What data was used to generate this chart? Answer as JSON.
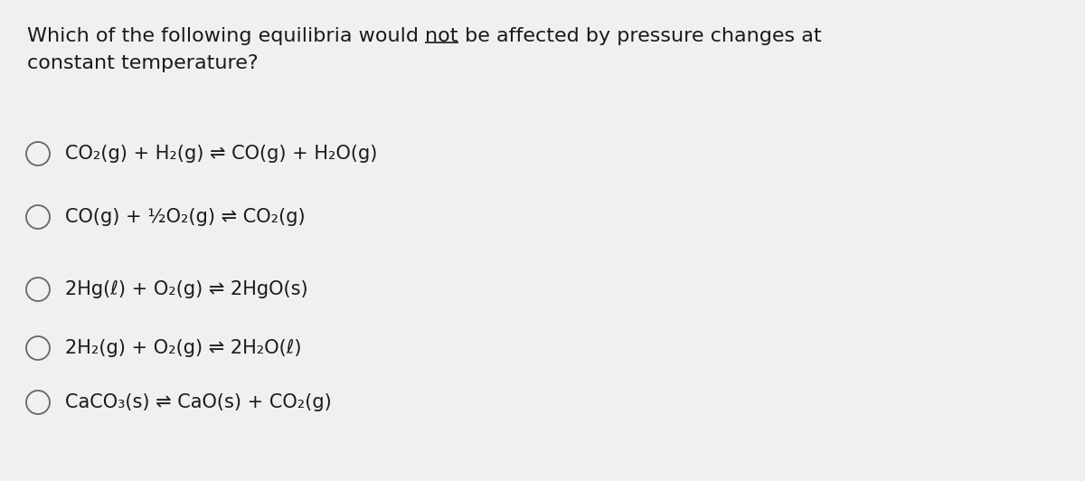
{
  "background_color": "#f0f0f0",
  "text_color": "#1a1a1a",
  "circle_color": "#666666",
  "title_part1": "Which of the following equilibria would ",
  "title_not": "not",
  "title_part2": " be affected by pressure changes at",
  "title_line2": "constant temperature?",
  "options": [
    "CO₂(g) + H₂(g) ⇌ CO(g) + H₂O(g)",
    "CO(g) + ½O₂(g) ⇌ CO₂(g)",
    "2Hg(ℓ) + O₂(g) ⇌ 2HgO(s)",
    "2H₂(g) + O₂(g) ⇌ 2H₂O(ℓ)",
    "CaCO₃(s) ⇌ CaO(s) + CO₂(g)"
  ],
  "title_fontsize": 16,
  "option_fontsize": 15,
  "fig_width": 12.0,
  "fig_height": 5.32,
  "dpi": 100
}
